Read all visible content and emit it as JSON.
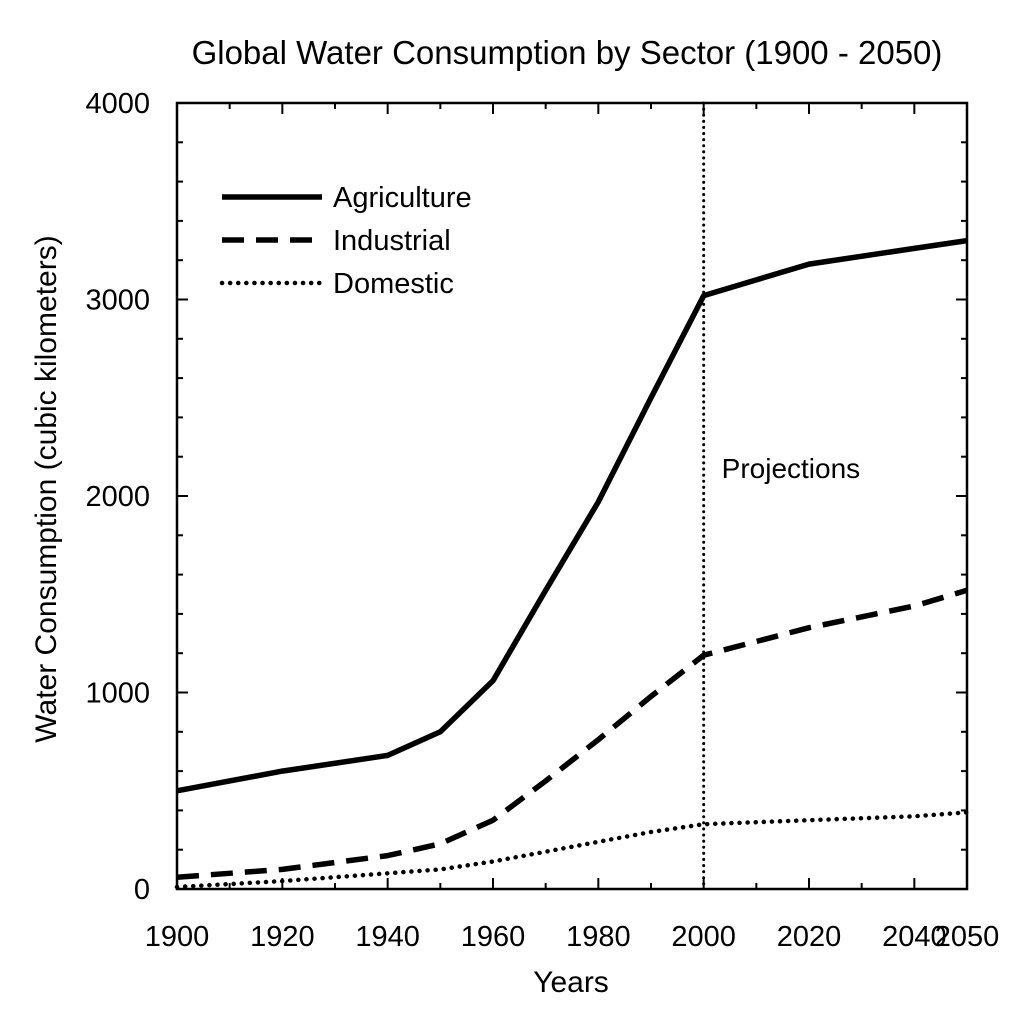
{
  "chart_data": {
    "type": "line",
    "title": "Global Water Consumption by Sector (1900 - 2050)",
    "xlabel": "Years",
    "ylabel": "Water Consumption (cubic kilometers)",
    "xlim": [
      1900,
      2050
    ],
    "ylim": [
      0,
      4000
    ],
    "x_ticks": [
      1900,
      1920,
      1940,
      1960,
      1980,
      2000,
      2020,
      2040,
      2050
    ],
    "y_ticks": [
      0,
      1000,
      2000,
      3000,
      4000
    ],
    "grid": false,
    "legend_position": "top-left",
    "series": [
      {
        "name": "Agriculture",
        "style": "solid",
        "color": "#000000",
        "x": [
          1900,
          1920,
          1940,
          1950,
          1960,
          1970,
          1980,
          1990,
          2000,
          2020,
          2040,
          2050
        ],
        "y": [
          500,
          600,
          680,
          800,
          1060,
          1520,
          1970,
          2500,
          3020,
          3180,
          3260,
          3300
        ]
      },
      {
        "name": "Industrial",
        "style": "dashed",
        "color": "#000000",
        "x": [
          1900,
          1920,
          1940,
          1950,
          1960,
          1970,
          1980,
          1990,
          2000,
          2020,
          2040,
          2050
        ],
        "y": [
          60,
          100,
          170,
          230,
          350,
          550,
          760,
          980,
          1190,
          1330,
          1440,
          1520
        ]
      },
      {
        "name": "Domestic",
        "style": "dotted",
        "color": "#000000",
        "x": [
          1900,
          1920,
          1940,
          1950,
          1960,
          1970,
          1980,
          1990,
          2000,
          2020,
          2040,
          2050
        ],
        "y": [
          10,
          40,
          80,
          100,
          140,
          190,
          240,
          290,
          330,
          350,
          370,
          390
        ]
      }
    ],
    "annotations": [
      {
        "text": "Projections",
        "x": 2000,
        "style": "dotted-vertical-line"
      }
    ]
  }
}
